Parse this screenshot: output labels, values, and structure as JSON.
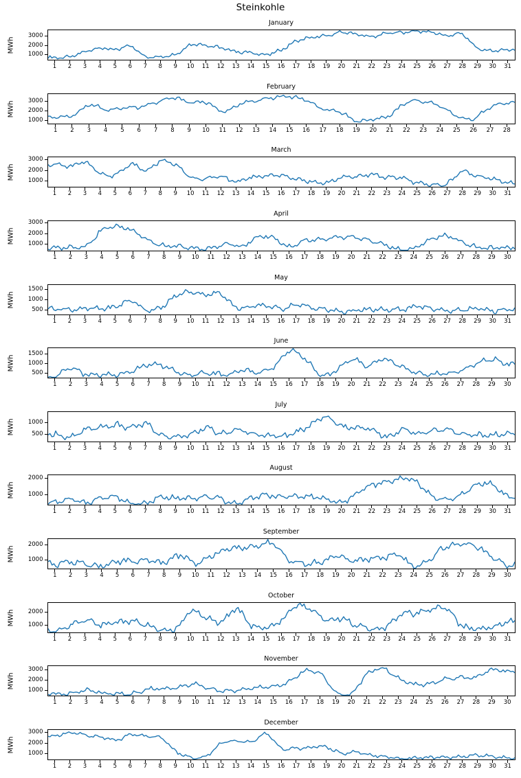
{
  "figure": {
    "title": "Steinkohle",
    "ylabel": "MWh",
    "line_color": "#1f77b4",
    "axis_color": "#000000",
    "background": "#ffffff"
  },
  "chart_data": [
    {
      "type": "line",
      "title": "January",
      "ylabel": "MWh",
      "days": 31,
      "xticks": [
        1,
        2,
        3,
        4,
        5,
        6,
        7,
        8,
        9,
        10,
        11,
        12,
        13,
        14,
        15,
        16,
        17,
        18,
        19,
        20,
        21,
        22,
        23,
        24,
        25,
        26,
        27,
        28,
        29,
        30,
        31
      ],
      "yticks": [
        1000,
        2000,
        3000
      ],
      "ylim": [
        350,
        3750
      ],
      "wiggle": 0.055,
      "daily_values": [
        600,
        700,
        1300,
        1700,
        1500,
        1900,
        700,
        750,
        1000,
        2100,
        2000,
        1700,
        1300,
        1150,
        950,
        1500,
        2500,
        2900,
        3100,
        3500,
        3300,
        3000,
        3400,
        3500,
        3650,
        3500,
        3100,
        3300,
        1700,
        1400,
        1500
      ]
    },
    {
      "type": "line",
      "title": "February",
      "ylabel": "MWh",
      "days": 28,
      "xticks": [
        1,
        2,
        3,
        4,
        5,
        6,
        7,
        8,
        9,
        10,
        11,
        12,
        13,
        14,
        15,
        16,
        17,
        18,
        19,
        20,
        21,
        22,
        23,
        24,
        25,
        26,
        27,
        28
      ],
      "yticks": [
        1000,
        2000,
        3000
      ],
      "ylim": [
        600,
        3800
      ],
      "wiggle": 0.06,
      "daily_values": [
        1300,
        1500,
        2600,
        2100,
        2300,
        2400,
        2900,
        3400,
        2900,
        2900,
        1900,
        2700,
        3100,
        3400,
        3500,
        3100,
        2200,
        1900,
        900,
        1100,
        1500,
        2900,
        3000,
        2500,
        1400,
        1100,
        2400,
        2800
      ]
    },
    {
      "type": "line",
      "title": "March",
      "ylabel": "MWh",
      "days": 31,
      "xticks": [
        1,
        2,
        3,
        4,
        5,
        6,
        7,
        8,
        9,
        10,
        11,
        12,
        13,
        14,
        15,
        16,
        17,
        18,
        19,
        20,
        21,
        22,
        23,
        24,
        25,
        26,
        27,
        28,
        29,
        30,
        31
      ],
      "yticks": [
        1000,
        2000,
        3000
      ],
      "ylim": [
        400,
        3300
      ],
      "wiggle": 0.07,
      "daily_values": [
        2600,
        2400,
        2800,
        1700,
        1600,
        2600,
        2000,
        2900,
        2500,
        1300,
        1200,
        1400,
        900,
        1300,
        1500,
        1500,
        1200,
        900,
        800,
        1300,
        1400,
        1600,
        1300,
        1300,
        800,
        600,
        700,
        1900,
        1400,
        1200,
        800
      ]
    },
    {
      "type": "line",
      "title": "April",
      "ylabel": "MWh",
      "days": 30,
      "xticks": [
        1,
        2,
        3,
        4,
        5,
        6,
        7,
        8,
        9,
        10,
        11,
        12,
        13,
        14,
        15,
        16,
        17,
        18,
        19,
        20,
        21,
        22,
        23,
        24,
        25,
        26,
        27,
        28,
        29,
        30
      ],
      "yticks": [
        1000,
        2000,
        3000
      ],
      "ylim": [
        350,
        3250
      ],
      "wiggle": 0.075,
      "daily_values": [
        600,
        700,
        900,
        2400,
        2700,
        2300,
        1300,
        800,
        750,
        550,
        600,
        1000,
        800,
        1700,
        1600,
        700,
        1300,
        1400,
        1600,
        1700,
        1400,
        1000,
        500,
        550,
        1400,
        1800,
        1300,
        700,
        600,
        650
      ]
    },
    {
      "type": "line",
      "title": "May",
      "ylabel": "MWh",
      "days": 31,
      "xticks": [
        1,
        2,
        3,
        4,
        5,
        6,
        7,
        8,
        9,
        10,
        11,
        12,
        13,
        14,
        15,
        16,
        17,
        18,
        19,
        20,
        21,
        22,
        23,
        24,
        25,
        26,
        27,
        28,
        29,
        30,
        31
      ],
      "yticks": [
        500,
        1000,
        1500
      ],
      "ylim": [
        250,
        1750
      ],
      "wiggle": 0.08,
      "daily_values": [
        550,
        500,
        550,
        550,
        650,
        950,
        500,
        600,
        1200,
        1400,
        1250,
        1300,
        600,
        650,
        700,
        550,
        750,
        600,
        500,
        400,
        450,
        500,
        480,
        520,
        650,
        550,
        450,
        480,
        550,
        420,
        520
      ]
    },
    {
      "type": "line",
      "title": "June",
      "ylabel": "MWh",
      "days": 30,
      "xticks": [
        1,
        2,
        3,
        4,
        5,
        6,
        7,
        8,
        9,
        10,
        11,
        12,
        13,
        14,
        15,
        16,
        17,
        18,
        19,
        20,
        21,
        22,
        23,
        24,
        25,
        26,
        27,
        28,
        29,
        30
      ],
      "yticks": [
        500,
        1000,
        1500
      ],
      "ylim": [
        250,
        1850
      ],
      "wiggle": 0.09,
      "daily_values": [
        350,
        750,
        400,
        380,
        400,
        650,
        950,
        900,
        450,
        430,
        500,
        420,
        650,
        550,
        850,
        1700,
        1300,
        420,
        600,
        1250,
        900,
        1250,
        950,
        550,
        450,
        470,
        600,
        1000,
        1250,
        1000
      ]
    },
    {
      "type": "line",
      "title": "July",
      "ylabel": "MWh",
      "days": 31,
      "xticks": [
        1,
        2,
        3,
        4,
        5,
        6,
        7,
        8,
        9,
        10,
        11,
        12,
        13,
        14,
        15,
        16,
        17,
        18,
        19,
        20,
        21,
        22,
        23,
        24,
        25,
        26,
        27,
        28,
        29,
        30,
        31
      ],
      "yticks": [
        500,
        1000
      ],
      "ylim": [
        180,
        1480
      ],
      "wiggle": 0.1,
      "daily_values": [
        500,
        350,
        700,
        800,
        900,
        800,
        950,
        450,
        400,
        500,
        800,
        500,
        700,
        520,
        470,
        420,
        600,
        950,
        1250,
        850,
        800,
        700,
        380,
        700,
        560,
        650,
        720,
        520,
        460,
        450,
        500
      ]
    },
    {
      "type": "line",
      "title": "August",
      "ylabel": "MWh",
      "days": 31,
      "xticks": [
        1,
        2,
        3,
        4,
        5,
        6,
        7,
        8,
        9,
        10,
        11,
        12,
        13,
        14,
        15,
        16,
        17,
        18,
        19,
        20,
        21,
        22,
        23,
        24,
        25,
        26,
        27,
        28,
        29,
        30,
        31
      ],
      "yticks": [
        1000,
        2000
      ],
      "ylim": [
        350,
        2250
      ],
      "wiggle": 0.09,
      "daily_values": [
        500,
        700,
        450,
        800,
        850,
        450,
        420,
        850,
        750,
        800,
        850,
        700,
        420,
        800,
        950,
        850,
        900,
        850,
        700,
        480,
        1100,
        1600,
        1800,
        2050,
        1800,
        900,
        700,
        1000,
        1650,
        1650,
        900
      ]
    },
    {
      "type": "line",
      "title": "September",
      "ylabel": "MWh",
      "days": 30,
      "xticks": [
        1,
        2,
        3,
        4,
        5,
        6,
        7,
        8,
        9,
        10,
        11,
        12,
        13,
        14,
        15,
        16,
        17,
        18,
        19,
        20,
        21,
        22,
        23,
        24,
        25,
        26,
        27,
        28,
        29,
        30
      ],
      "yticks": [
        1000,
        2000
      ],
      "ylim": [
        350,
        2450
      ],
      "wiggle": 0.11,
      "daily_values": [
        700,
        850,
        600,
        500,
        900,
        850,
        900,
        800,
        1300,
        800,
        1250,
        1700,
        1850,
        1950,
        2100,
        950,
        700,
        800,
        1250,
        950,
        1000,
        1100,
        1350,
        500,
        950,
        1900,
        2050,
        1950,
        1200,
        600
      ]
    },
    {
      "type": "line",
      "title": "October",
      "ylabel": "MWh",
      "days": 31,
      "xticks": [
        1,
        2,
        3,
        4,
        5,
        6,
        7,
        8,
        9,
        10,
        11,
        12,
        13,
        14,
        15,
        16,
        17,
        18,
        19,
        20,
        21,
        22,
        23,
        24,
        25,
        26,
        27,
        28,
        29,
        30,
        31
      ],
      "yticks": [
        1000,
        2000
      ],
      "ylim": [
        400,
        2750
      ],
      "wiggle": 0.1,
      "daily_values": [
        500,
        950,
        1400,
        1000,
        1200,
        1250,
        1000,
        600,
        700,
        2100,
        1550,
        1250,
        2250,
        950,
        800,
        1350,
        2550,
        2200,
        1400,
        1500,
        950,
        700,
        900,
        1900,
        1950,
        2250,
        2300,
        900,
        700,
        800,
        1200
      ]
    },
    {
      "type": "line",
      "title": "November",
      "ylabel": "MWh",
      "days": 30,
      "xticks": [
        1,
        2,
        3,
        4,
        5,
        6,
        7,
        8,
        9,
        10,
        11,
        12,
        13,
        14,
        15,
        16,
        17,
        18,
        19,
        20,
        21,
        22,
        23,
        24,
        25,
        26,
        27,
        28,
        29,
        30
      ],
      "yticks": [
        1000,
        2000,
        3000
      ],
      "ylim": [
        450,
        3450
      ],
      "wiggle": 0.07,
      "daily_values": [
        600,
        650,
        1000,
        700,
        600,
        650,
        1100,
        1150,
        1300,
        1600,
        1100,
        900,
        1150,
        1250,
        1350,
        1900,
        2900,
        2700,
        800,
        700,
        2600,
        3200,
        2200,
        1600,
        1650,
        2100,
        2300,
        2300,
        3100,
        2900
      ]
    },
    {
      "type": "line",
      "title": "December",
      "ylabel": "MWh",
      "days": 31,
      "xticks": [
        1,
        2,
        3,
        4,
        5,
        6,
        7,
        8,
        9,
        10,
        11,
        12,
        13,
        14,
        15,
        16,
        17,
        18,
        19,
        20,
        21,
        22,
        23,
        24,
        25,
        26,
        27,
        28,
        29,
        30,
        31
      ],
      "yticks": [
        1000,
        2000,
        3000
      ],
      "ylim": [
        400,
        3300
      ],
      "wiggle": 0.055,
      "daily_values": [
        2700,
        3000,
        2800,
        2600,
        2300,
        2800,
        2700,
        2500,
        1200,
        600,
        700,
        2000,
        2200,
        2100,
        2900,
        1500,
        1500,
        1600,
        1600,
        1000,
        1100,
        800,
        650,
        500,
        550,
        600,
        600,
        650,
        800,
        700,
        550
      ]
    }
  ]
}
